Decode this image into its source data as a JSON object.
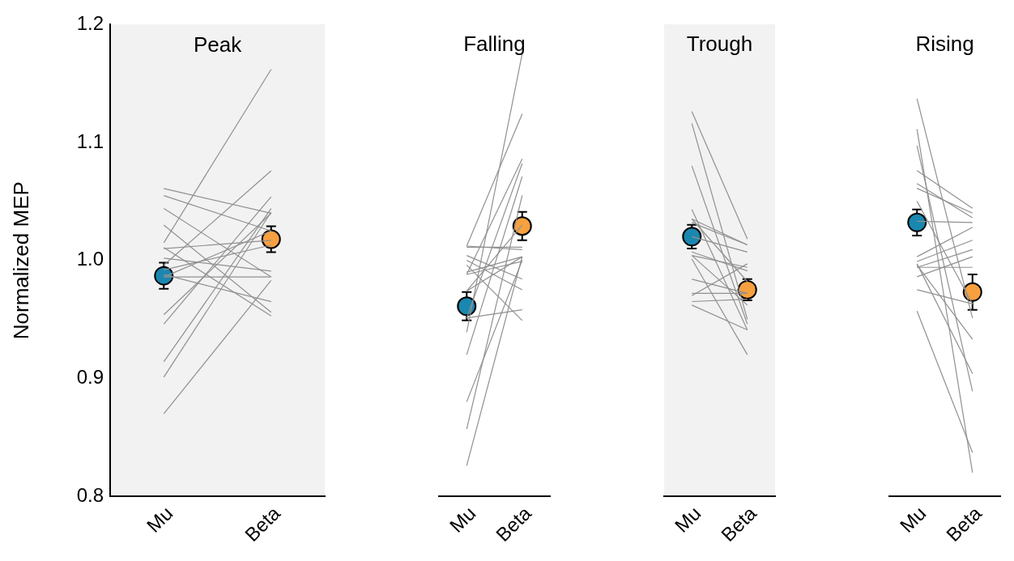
{
  "chart_data": [
    {
      "type": "line",
      "title": "Peak",
      "ylabel": "Normalized MEP",
      "categories": [
        "Mu",
        "Beta"
      ],
      "ylim": [
        0.8,
        1.2
      ],
      "yticks": [
        0.8,
        0.9,
        {
          "value": 1.0,
          "label": "1.0"
        },
        1.1,
        1.2
      ],
      "grid": false,
      "series": [
        {
          "color": "#909090",
          "values": [
            0.87,
            0.983
          ]
        },
        {
          "color": "#909090",
          "values": [
            0.901,
            1.041
          ]
        },
        {
          "color": "#909090",
          "values": [
            0.914,
            1.044
          ]
        },
        {
          "color": "#909090",
          "values": [
            0.946,
            1.054
          ]
        },
        {
          "color": "#909090",
          "values": [
            0.954,
            1.04
          ]
        },
        {
          "color": "#909090",
          "values": [
            1.015,
            1.162
          ]
        },
        {
          "color": "#909090",
          "values": [
            0.996,
            1.076
          ]
        },
        {
          "color": "#909090",
          "values": [
            1.061,
            1.04
          ]
        },
        {
          "color": "#909090",
          "values": [
            1.055,
            1.025
          ]
        },
        {
          "color": "#909090",
          "values": [
            1.044,
            0.986
          ]
        },
        {
          "color": "#909090",
          "values": [
            1.03,
            0.956
          ]
        },
        {
          "color": "#909090",
          "values": [
            1.011,
            0.953
          ]
        },
        {
          "color": "#909090",
          "values": [
            1.01,
            1.017
          ]
        },
        {
          "color": "#909090",
          "values": [
            1.002,
            0.991
          ]
        },
        {
          "color": "#909090",
          "values": [
            0.992,
            1.013
          ]
        },
        {
          "color": "#909090",
          "values": [
            0.988,
            0.965
          ]
        },
        {
          "color": "#909090",
          "values": [
            0.986,
            1.025
          ]
        },
        {
          "color": "#909090",
          "values": [
            0.986,
            0.986
          ]
        },
        {
          "type": "scatter",
          "marker": "circle",
          "colors": [
            "#1a87b0",
            "#f7a040"
          ],
          "values": [
            0.987,
            1.018
          ],
          "errors": [
            0.011,
            0.011
          ]
        }
      ]
    },
    {
      "type": "line",
      "title": "Falling",
      "categories": [
        "Mu",
        "Beta"
      ],
      "ylim": [
        0.8,
        1.2
      ],
      "tick_labels": "x",
      "grid": false,
      "series": [
        {
          "color": "#909090",
          "values": [
            0.826,
            1.003
          ]
        },
        {
          "color": "#909090",
          "values": [
            0.857,
            1.055
          ]
        },
        {
          "color": "#909090",
          "values": [
            0.88,
            1.0
          ]
        },
        {
          "color": "#909090",
          "values": [
            0.92,
            1.071
          ]
        },
        {
          "color": "#909090",
          "values": [
            0.939,
            1.175
          ]
        },
        {
          "color": "#909090",
          "values": [
            0.951,
            0.958
          ]
        },
        {
          "color": "#909090",
          "values": [
            0.974,
            1.03
          ]
        },
        {
          "color": "#909090",
          "values": [
            0.988,
            1.086
          ]
        },
        {
          "color": "#909090",
          "values": [
            1.012,
            1.124
          ]
        },
        {
          "color": "#909090",
          "values": [
            1.011,
            1.011
          ]
        },
        {
          "color": "#909090",
          "values": [
            1.012,
            1.009
          ]
        },
        {
          "color": "#909090",
          "values": [
            1.004,
            0.984
          ]
        },
        {
          "color": "#909090",
          "values": [
            1.0,
            0.975
          ]
        },
        {
          "color": "#909090",
          "values": [
            0.996,
            0.949
          ]
        },
        {
          "color": "#909090",
          "values": [
            0.99,
            1.003
          ]
        },
        {
          "color": "#909090",
          "values": [
            0.988,
            0.999
          ]
        },
        {
          "color": "#909090",
          "values": [
            0.951,
            1.082
          ]
        },
        {
          "color": "#909090",
          "values": [
            0.974,
            1.003
          ]
        },
        {
          "type": "scatter",
          "marker": "circle",
          "colors": [
            "#1a87b0",
            "#f7a040"
          ],
          "values": [
            0.961,
            1.029
          ],
          "errors": [
            0.012,
            0.012
          ]
        }
      ]
    },
    {
      "type": "line",
      "title": "Trough",
      "categories": [
        "Mu",
        "Beta"
      ],
      "ylim": [
        0.8,
        1.2
      ],
      "tick_labels": "x",
      "grid": false,
      "series": [
        {
          "color": "#909090",
          "values": [
            1.126,
            1.018
          ]
        },
        {
          "color": "#909090",
          "values": [
            1.116,
            0.95
          ]
        },
        {
          "color": "#909090",
          "values": [
            1.08,
            0.946
          ]
        },
        {
          "color": "#909090",
          "values": [
            1.043,
            0.941
          ]
        },
        {
          "color": "#909090",
          "values": [
            1.035,
            0.982
          ]
        },
        {
          "color": "#909090",
          "values": [
            1.032,
            1.013
          ]
        },
        {
          "color": "#909090",
          "values": [
            1.02,
            1.007
          ]
        },
        {
          "color": "#909090",
          "values": [
            1.007,
            0.991
          ]
        },
        {
          "color": "#909090",
          "values": [
            1.004,
            0.962
          ]
        },
        {
          "color": "#909090",
          "values": [
            1.001,
            0.92
          ]
        },
        {
          "color": "#909090",
          "values": [
            0.984,
            0.972
          ]
        },
        {
          "color": "#909090",
          "values": [
            0.972,
            0.972
          ]
        },
        {
          "color": "#909090",
          "values": [
            0.97,
            0.997
          ]
        },
        {
          "color": "#909090",
          "values": [
            0.965,
            0.967
          ]
        },
        {
          "color": "#909090",
          "values": [
            0.962,
            0.941
          ]
        },
        {
          "color": "#909090",
          "values": [
            1.035,
            1.013
          ]
        },
        {
          "color": "#909090",
          "values": [
            1.004,
            0.994
          ]
        },
        {
          "type": "scatter",
          "marker": "circle",
          "colors": [
            "#1a87b0",
            "#f7a040"
          ],
          "values": [
            1.02,
            0.975
          ],
          "errors": [
            0.01,
            0.009
          ]
        }
      ]
    },
    {
      "type": "line",
      "title": "Rising",
      "categories": [
        "Mu",
        "Beta"
      ],
      "ylim": [
        0.8,
        1.2
      ],
      "tick_labels": "x",
      "grid": false,
      "series": [
        {
          "color": "#909090",
          "values": [
            1.137,
            0.951
          ]
        },
        {
          "color": "#909090",
          "values": [
            1.111,
            0.82
          ]
        },
        {
          "color": "#909090",
          "values": [
            1.097,
            0.889
          ]
        },
        {
          "color": "#909090",
          "values": [
            0.957,
            0.837
          ]
        },
        {
          "color": "#909090",
          "values": [
            1.076,
            1.044
          ]
        },
        {
          "color": "#909090",
          "values": [
            1.065,
            1.036
          ]
        },
        {
          "color": "#909090",
          "values": [
            1.061,
            1.04
          ]
        },
        {
          "color": "#909090",
          "values": [
            1.05,
            0.963
          ]
        },
        {
          "color": "#909090",
          "values": [
            1.033,
            1.032
          ]
        },
        {
          "color": "#909090",
          "values": [
            1.003,
            1.028
          ]
        },
        {
          "color": "#909090",
          "values": [
            0.999,
            1.017
          ]
        },
        {
          "color": "#909090",
          "values": [
            0.997,
            0.904
          ]
        },
        {
          "color": "#909090",
          "values": [
            0.996,
            0.933
          ]
        },
        {
          "color": "#909090",
          "values": [
            0.994,
            1.009
          ]
        },
        {
          "color": "#909090",
          "values": [
            0.986,
            1.003
          ]
        },
        {
          "color": "#909090",
          "values": [
            0.975,
            0.963
          ]
        },
        {
          "color": "#909090",
          "values": [
            0.994,
            0.994
          ]
        },
        {
          "type": "scatter",
          "marker": "circle",
          "colors": [
            "#1a87b0",
            "#f7a040"
          ],
          "values": [
            1.032,
            0.973
          ],
          "errors": [
            0.011,
            0.015
          ]
        }
      ]
    }
  ]
}
